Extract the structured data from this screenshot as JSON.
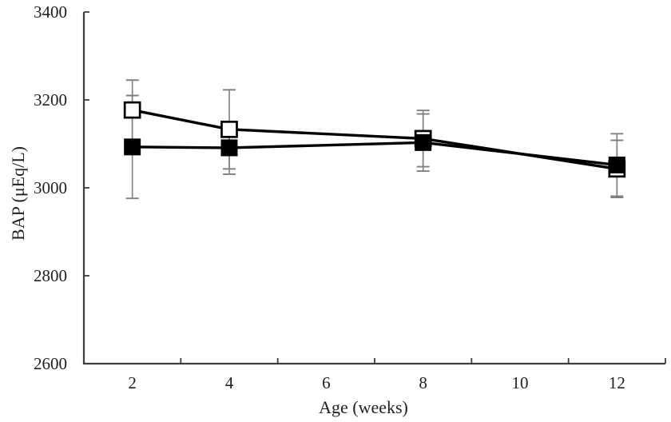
{
  "figure": {
    "aria_label": "Line chart with error bars showing BAP (microequivalents per liter) versus age in weeks for two groups (open squares and filled squares)"
  },
  "chart_data": {
    "type": "line",
    "title": "",
    "xlabel": "Age (weeks)",
    "ylabel": "BAP (μEq/L)",
    "x": [
      2,
      4,
      8,
      12
    ],
    "x_axis": {
      "min": 1,
      "max": 13,
      "tick_boundaries": [
        3,
        5,
        7,
        9,
        11,
        13
      ],
      "tick_label_positions": [
        2,
        4,
        6,
        8,
        10,
        12
      ],
      "tick_labels": [
        "2",
        "4",
        "6",
        "8",
        "10",
        "12"
      ]
    },
    "y_axis": {
      "min": 2600,
      "max": 3400,
      "tick_step": 200,
      "ticks": [
        2600,
        2800,
        3000,
        3200,
        3400
      ],
      "tick_labels": [
        "2600",
        "2800",
        "3000",
        "3200",
        "3400"
      ]
    },
    "series": [
      {
        "name": "open-square-group",
        "marker": "open-square",
        "marker_fill": "#ffffff",
        "marker_border": "#000000",
        "values": [
          3177,
          3133,
          3112,
          3043
        ],
        "error": [
          68,
          90,
          64,
          65
        ]
      },
      {
        "name": "filled-square-group",
        "marker": "filled-square",
        "marker_fill": "#000000",
        "marker_border": "#000000",
        "values": [
          3093,
          3091,
          3103,
          3052
        ],
        "error": [
          117,
          60,
          65,
          71
        ]
      }
    ],
    "grid": false,
    "legend": "none",
    "colors": {
      "line": "#000000",
      "error_bar": "#7f7f7f",
      "axis": "#3d3d3d",
      "text": "#1f1f1f",
      "background": "#ffffff"
    }
  }
}
